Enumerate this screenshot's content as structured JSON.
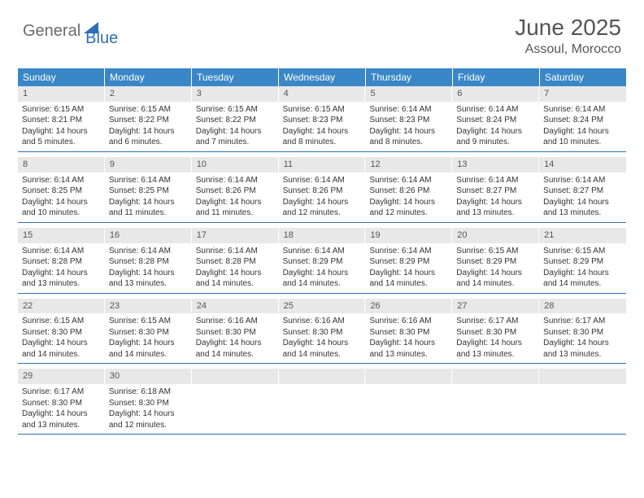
{
  "logo": {
    "text1": "General",
    "text2": "Blue"
  },
  "title": "June 2025",
  "location": "Assoul, Morocco",
  "colors": {
    "header_bg": "#3a87c8",
    "border": "#2e6fb5",
    "daynum_bg": "#e8e8e8",
    "text": "#333333",
    "logo_gray": "#6b6b6b",
    "logo_blue": "#2e6fb5"
  },
  "weekdays": [
    "Sunday",
    "Monday",
    "Tuesday",
    "Wednesday",
    "Thursday",
    "Friday",
    "Saturday"
  ],
  "weeks": [
    [
      {
        "n": "1",
        "sr": "Sunrise: 6:15 AM",
        "ss": "Sunset: 8:21 PM",
        "d1": "Daylight: 14 hours",
        "d2": "and 5 minutes."
      },
      {
        "n": "2",
        "sr": "Sunrise: 6:15 AM",
        "ss": "Sunset: 8:22 PM",
        "d1": "Daylight: 14 hours",
        "d2": "and 6 minutes."
      },
      {
        "n": "3",
        "sr": "Sunrise: 6:15 AM",
        "ss": "Sunset: 8:22 PM",
        "d1": "Daylight: 14 hours",
        "d2": "and 7 minutes."
      },
      {
        "n": "4",
        "sr": "Sunrise: 6:15 AM",
        "ss": "Sunset: 8:23 PM",
        "d1": "Daylight: 14 hours",
        "d2": "and 8 minutes."
      },
      {
        "n": "5",
        "sr": "Sunrise: 6:14 AM",
        "ss": "Sunset: 8:23 PM",
        "d1": "Daylight: 14 hours",
        "d2": "and 8 minutes."
      },
      {
        "n": "6",
        "sr": "Sunrise: 6:14 AM",
        "ss": "Sunset: 8:24 PM",
        "d1": "Daylight: 14 hours",
        "d2": "and 9 minutes."
      },
      {
        "n": "7",
        "sr": "Sunrise: 6:14 AM",
        "ss": "Sunset: 8:24 PM",
        "d1": "Daylight: 14 hours",
        "d2": "and 10 minutes."
      }
    ],
    [
      {
        "n": "8",
        "sr": "Sunrise: 6:14 AM",
        "ss": "Sunset: 8:25 PM",
        "d1": "Daylight: 14 hours",
        "d2": "and 10 minutes."
      },
      {
        "n": "9",
        "sr": "Sunrise: 6:14 AM",
        "ss": "Sunset: 8:25 PM",
        "d1": "Daylight: 14 hours",
        "d2": "and 11 minutes."
      },
      {
        "n": "10",
        "sr": "Sunrise: 6:14 AM",
        "ss": "Sunset: 8:26 PM",
        "d1": "Daylight: 14 hours",
        "d2": "and 11 minutes."
      },
      {
        "n": "11",
        "sr": "Sunrise: 6:14 AM",
        "ss": "Sunset: 8:26 PM",
        "d1": "Daylight: 14 hours",
        "d2": "and 12 minutes."
      },
      {
        "n": "12",
        "sr": "Sunrise: 6:14 AM",
        "ss": "Sunset: 8:26 PM",
        "d1": "Daylight: 14 hours",
        "d2": "and 12 minutes."
      },
      {
        "n": "13",
        "sr": "Sunrise: 6:14 AM",
        "ss": "Sunset: 8:27 PM",
        "d1": "Daylight: 14 hours",
        "d2": "and 13 minutes."
      },
      {
        "n": "14",
        "sr": "Sunrise: 6:14 AM",
        "ss": "Sunset: 8:27 PM",
        "d1": "Daylight: 14 hours",
        "d2": "and 13 minutes."
      }
    ],
    [
      {
        "n": "15",
        "sr": "Sunrise: 6:14 AM",
        "ss": "Sunset: 8:28 PM",
        "d1": "Daylight: 14 hours",
        "d2": "and 13 minutes."
      },
      {
        "n": "16",
        "sr": "Sunrise: 6:14 AM",
        "ss": "Sunset: 8:28 PM",
        "d1": "Daylight: 14 hours",
        "d2": "and 13 minutes."
      },
      {
        "n": "17",
        "sr": "Sunrise: 6:14 AM",
        "ss": "Sunset: 8:28 PM",
        "d1": "Daylight: 14 hours",
        "d2": "and 14 minutes."
      },
      {
        "n": "18",
        "sr": "Sunrise: 6:14 AM",
        "ss": "Sunset: 8:29 PM",
        "d1": "Daylight: 14 hours",
        "d2": "and 14 minutes."
      },
      {
        "n": "19",
        "sr": "Sunrise: 6:14 AM",
        "ss": "Sunset: 8:29 PM",
        "d1": "Daylight: 14 hours",
        "d2": "and 14 minutes."
      },
      {
        "n": "20",
        "sr": "Sunrise: 6:15 AM",
        "ss": "Sunset: 8:29 PM",
        "d1": "Daylight: 14 hours",
        "d2": "and 14 minutes."
      },
      {
        "n": "21",
        "sr": "Sunrise: 6:15 AM",
        "ss": "Sunset: 8:29 PM",
        "d1": "Daylight: 14 hours",
        "d2": "and 14 minutes."
      }
    ],
    [
      {
        "n": "22",
        "sr": "Sunrise: 6:15 AM",
        "ss": "Sunset: 8:30 PM",
        "d1": "Daylight: 14 hours",
        "d2": "and 14 minutes."
      },
      {
        "n": "23",
        "sr": "Sunrise: 6:15 AM",
        "ss": "Sunset: 8:30 PM",
        "d1": "Daylight: 14 hours",
        "d2": "and 14 minutes."
      },
      {
        "n": "24",
        "sr": "Sunrise: 6:16 AM",
        "ss": "Sunset: 8:30 PM",
        "d1": "Daylight: 14 hours",
        "d2": "and 14 minutes."
      },
      {
        "n": "25",
        "sr": "Sunrise: 6:16 AM",
        "ss": "Sunset: 8:30 PM",
        "d1": "Daylight: 14 hours",
        "d2": "and 14 minutes."
      },
      {
        "n": "26",
        "sr": "Sunrise: 6:16 AM",
        "ss": "Sunset: 8:30 PM",
        "d1": "Daylight: 14 hours",
        "d2": "and 13 minutes."
      },
      {
        "n": "27",
        "sr": "Sunrise: 6:17 AM",
        "ss": "Sunset: 8:30 PM",
        "d1": "Daylight: 14 hours",
        "d2": "and 13 minutes."
      },
      {
        "n": "28",
        "sr": "Sunrise: 6:17 AM",
        "ss": "Sunset: 8:30 PM",
        "d1": "Daylight: 14 hours",
        "d2": "and 13 minutes."
      }
    ],
    [
      {
        "n": "29",
        "sr": "Sunrise: 6:17 AM",
        "ss": "Sunset: 8:30 PM",
        "d1": "Daylight: 14 hours",
        "d2": "and 13 minutes."
      },
      {
        "n": "30",
        "sr": "Sunrise: 6:18 AM",
        "ss": "Sunset: 8:30 PM",
        "d1": "Daylight: 14 hours",
        "d2": "and 12 minutes."
      },
      null,
      null,
      null,
      null,
      null
    ]
  ]
}
